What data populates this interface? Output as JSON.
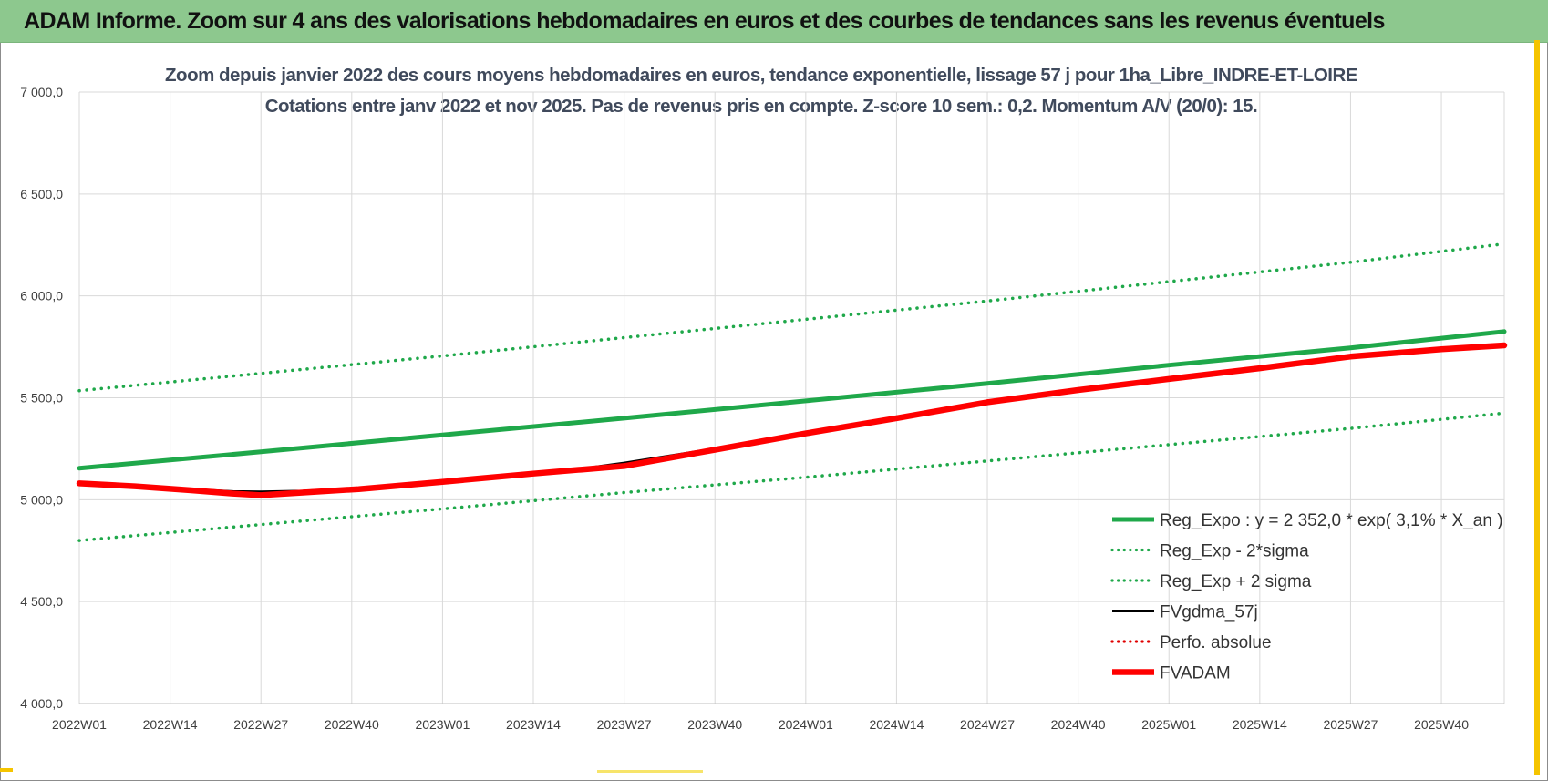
{
  "header": {
    "title": "ADAM Informe. Zoom sur 4 ans des valorisations hebdomadaires en euros et des courbes de tendances sans les revenus éventuels"
  },
  "chart_data": {
    "type": "line",
    "title_line1": "Zoom depuis janvier 2022 des cours moyens hebdomadaires en euros, tendance exponentielle, lissage 57 j pour 1ha_Libre_INDRE-ET-LOIRE",
    "title_line2": "Cotations entre janv 2022 et nov 2025. Pas de revenus pris en compte. Z-score 10 sem.: 0,2. Momentum A/V (20/0): 15.",
    "x_ticks": [
      "2022W01",
      "2022W14",
      "2022W27",
      "2022W40",
      "2023W01",
      "2023W14",
      "2023W27",
      "2023W40",
      "2024W01",
      "2024W14",
      "2024W27",
      "2024W40",
      "2025W01",
      "2025W14",
      "2025W27",
      "2025W40"
    ],
    "x_tick_index": [
      0,
      13,
      26,
      39,
      52,
      65,
      78,
      91,
      104,
      117,
      130,
      143,
      156,
      169,
      182,
      195
    ],
    "x_max_index": 204,
    "y_ticks": [
      "4 000,0",
      "4 500,0",
      "5 000,0",
      "5 500,0",
      "6 000,0",
      "6 500,0",
      "7 000,0"
    ],
    "ylim": [
      4000,
      7000
    ],
    "grid": true,
    "legend_position": "bottom-right",
    "series": [
      {
        "name": "Reg_Expo : y = 2 352,0 * exp( 3,1% *  X_an )",
        "style": "solid-thick",
        "color": "#1fa84a",
        "points": [
          [
            0,
            5155
          ],
          [
            26,
            5235
          ],
          [
            52,
            5318
          ],
          [
            78,
            5400
          ],
          [
            104,
            5485
          ],
          [
            130,
            5570
          ],
          [
            156,
            5660
          ],
          [
            182,
            5745
          ],
          [
            204,
            5825
          ]
        ]
      },
      {
        "name": "Reg_Exp - 2*sigma",
        "style": "dotted",
        "color": "#1fa84a",
        "points": [
          [
            0,
            4800
          ],
          [
            26,
            4878
          ],
          [
            52,
            4955
          ],
          [
            78,
            5035
          ],
          [
            104,
            5110
          ],
          [
            130,
            5190
          ],
          [
            156,
            5270
          ],
          [
            182,
            5350
          ],
          [
            204,
            5425
          ]
        ]
      },
      {
        "name": "Reg_Exp + 2 sigma",
        "style": "dotted",
        "color": "#1fa84a",
        "points": [
          [
            0,
            5535
          ],
          [
            26,
            5620
          ],
          [
            52,
            5705
          ],
          [
            78,
            5795
          ],
          [
            104,
            5885
          ],
          [
            130,
            5975
          ],
          [
            156,
            6070
          ],
          [
            182,
            6165
          ],
          [
            204,
            6255
          ]
        ]
      },
      {
        "name": "FVgdma_57j",
        "style": "solid",
        "color": "#000000",
        "points": [
          [
            0,
            5080
          ],
          [
            8,
            5068
          ],
          [
            16,
            5050
          ],
          [
            22,
            5040
          ],
          [
            26,
            5038
          ],
          [
            32,
            5042
          ],
          [
            40,
            5055
          ],
          [
            52,
            5090
          ],
          [
            65,
            5130
          ],
          [
            72,
            5152
          ],
          [
            78,
            5180
          ],
          [
            91,
            5250
          ],
          [
            104,
            5330
          ],
          [
            117,
            5405
          ],
          [
            130,
            5480
          ],
          [
            143,
            5540
          ],
          [
            156,
            5595
          ],
          [
            169,
            5648
          ],
          [
            182,
            5705
          ],
          [
            195,
            5740
          ],
          [
            204,
            5760
          ]
        ]
      },
      {
        "name": "Perfo. absolue",
        "style": "dotted",
        "color": "#e00000",
        "points": []
      },
      {
        "name": "FVADAM",
        "style": "solid-thick",
        "color": "#ff0000",
        "points": [
          [
            0,
            5080
          ],
          [
            8,
            5066
          ],
          [
            16,
            5046
          ],
          [
            22,
            5030
          ],
          [
            26,
            5022
          ],
          [
            32,
            5035
          ],
          [
            40,
            5052
          ],
          [
            52,
            5088
          ],
          [
            65,
            5128
          ],
          [
            72,
            5148
          ],
          [
            78,
            5165
          ],
          [
            91,
            5245
          ],
          [
            104,
            5325
          ],
          [
            117,
            5400
          ],
          [
            130,
            5478
          ],
          [
            143,
            5538
          ],
          [
            156,
            5592
          ],
          [
            169,
            5645
          ],
          [
            182,
            5702
          ],
          [
            195,
            5738
          ],
          [
            204,
            5757
          ]
        ]
      }
    ]
  }
}
